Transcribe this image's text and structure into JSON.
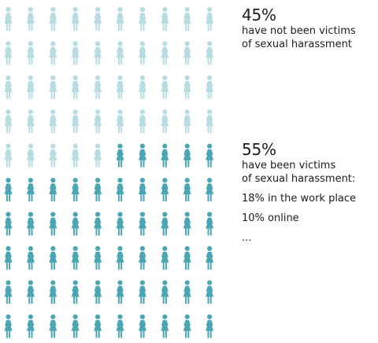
{
  "chart_data": {
    "type": "pictogram",
    "total_icons": 100,
    "columns": 10,
    "icon": "woman-figure-icon",
    "series": [
      {
        "value": 45,
        "percent_label": "45%",
        "line1": "have not been victims",
        "line2": "of sexual harassment",
        "color": "#b7dce2"
      },
      {
        "value": 55,
        "percent_label": "55%",
        "line1": "have been victims",
        "line2": "of sexual harassment:",
        "color": "#4aa6b3",
        "breakdown": [
          {
            "label": "18% in the work place",
            "value": 18
          },
          {
            "label": "10% online",
            "value": 10
          },
          {
            "label": "..."
          }
        ]
      }
    ]
  }
}
